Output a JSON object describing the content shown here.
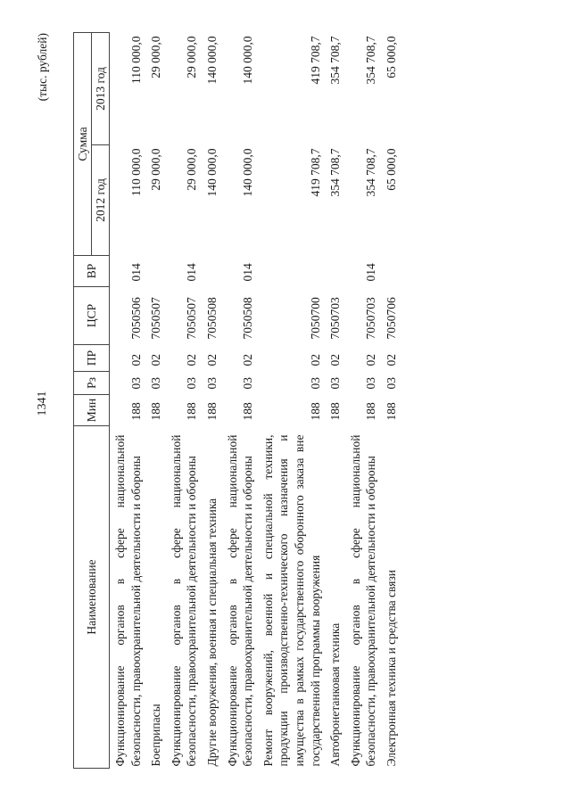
{
  "page_number": "1341",
  "unit_note": "(тыс. рублей)",
  "header": {
    "name": "Наименование",
    "min": "Мин",
    "rz": "Рз",
    "pr": "ПР",
    "csr": "ЦСР",
    "vr": "ВР",
    "sum": "Сумма",
    "y2012": "2012 год",
    "y2013": "2013 год"
  },
  "rows": [
    {
      "name": "Функционирование органов в сфере национальной безопасности, правоохранительной деятельности и обороны",
      "min": "188",
      "rz": "03",
      "pr": "02",
      "csr": "7050506",
      "vr": "014",
      "y2012": "110 000,0",
      "y2013": "110 000,0"
    },
    {
      "name": "Боеприпасы",
      "min": "188",
      "rz": "03",
      "pr": "02",
      "csr": "7050507",
      "vr": "",
      "y2012": "29 000,0",
      "y2013": "29 000,0"
    },
    {
      "name": "Функционирование органов в сфере национальной безопасности, правоохранительной деятельности и обороны",
      "min": "188",
      "rz": "03",
      "pr": "02",
      "csr": "7050507",
      "vr": "014",
      "y2012": "29 000,0",
      "y2013": "29 000,0"
    },
    {
      "name": "Другие вооружения, военная и специальная техника",
      "min": "188",
      "rz": "03",
      "pr": "02",
      "csr": "7050508",
      "vr": "",
      "y2012": "140 000,0",
      "y2013": "140 000,0"
    },
    {
      "name": "Функционирование органов в сфере национальной безопасности, правоохранительной деятельности и обороны",
      "min": "188",
      "rz": "03",
      "pr": "02",
      "csr": "7050508",
      "vr": "014",
      "y2012": "140 000,0",
      "y2013": "140 000,0"
    },
    {
      "name": "Ремонт вооружений, военной и специальной техники, продукции производственно-технического назначения и имущества в рамках государственного оборонного заказа вне государственной программы вооружения",
      "min": "188",
      "rz": "03",
      "pr": "02",
      "csr": "7050700",
      "vr": "",
      "y2012": "419 708,7",
      "y2013": "419 708,7"
    },
    {
      "name": "Автобронетанковая техника",
      "min": "188",
      "rz": "03",
      "pr": "02",
      "csr": "7050703",
      "vr": "",
      "y2012": "354 708,7",
      "y2013": "354 708,7"
    },
    {
      "name": "Функционирование органов в сфере национальной безопасности, правоохранительной деятельности и обороны",
      "min": "188",
      "rz": "03",
      "pr": "02",
      "csr": "7050703",
      "vr": "014",
      "y2012": "354 708,7",
      "y2013": "354 708,7"
    },
    {
      "name": "Электронная техника и средства связи",
      "min": "188",
      "rz": "03",
      "pr": "02",
      "csr": "7050706",
      "vr": "",
      "y2012": "65 000,0",
      "y2013": "65 000,0"
    }
  ]
}
